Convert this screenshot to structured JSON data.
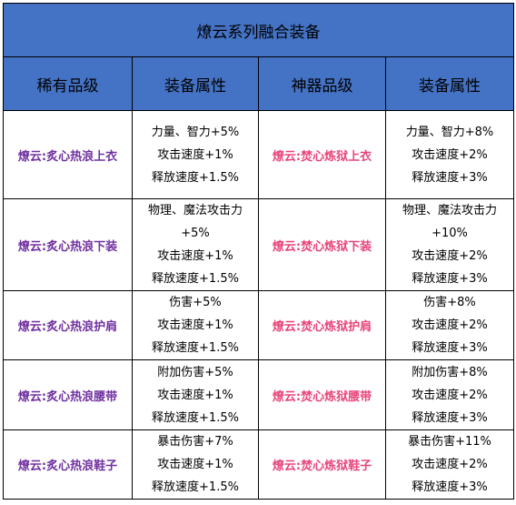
{
  "title": "燎云系列融合装备",
  "headers": [
    "稀有品级",
    "装备属性",
    "神器品级",
    "装备属性"
  ],
  "colors": {
    "header_bg": "#4472c4",
    "rare_name": "#7030a0",
    "artifact_name": "#e8457a"
  },
  "rows": [
    {
      "rare_name": "燎云:炙心热浪上衣",
      "rare_attrs": [
        "力量、智力+5%",
        "攻击速度+1%",
        "释放速度+1.5%"
      ],
      "artifact_name": "燎云:焚心炼狱上衣",
      "artifact_attrs": [
        "力量、智力+8%",
        "攻击速度+2%",
        "释放速度+3%"
      ]
    },
    {
      "rare_name": "燎云:炙心热浪下装",
      "rare_attrs": [
        "物理、魔法攻击力",
        "+5%",
        "攻击速度+1%",
        "释放速度+1.5%"
      ],
      "artifact_name": "燎云:焚心炼狱下装",
      "artifact_attrs": [
        "物理、魔法攻击力",
        "+10%",
        "攻击速度+2%",
        "释放速度+3%"
      ]
    },
    {
      "rare_name": "燎云:炙心热浪护肩",
      "rare_attrs": [
        "伤害+5%",
        "攻击速度+1%",
        "释放速度+1.5%"
      ],
      "artifact_name": "燎云:焚心炼狱护肩",
      "artifact_attrs": [
        "伤害+8%",
        "攻击速度+2%",
        "释放速度+3%"
      ]
    },
    {
      "rare_name": "燎云:炙心热浪腰带",
      "rare_attrs": [
        "附加伤害+5%",
        "攻击速度+1%",
        "释放速度+1.5%"
      ],
      "artifact_name": "燎云:焚心炼狱腰带",
      "artifact_attrs": [
        "附加伤害+8%",
        "攻击速度+2%",
        "释放速度+3%"
      ]
    },
    {
      "rare_name": "燎云:炙心热浪鞋子",
      "rare_attrs": [
        "暴击伤害+7%",
        "攻击速度+1%",
        "释放速度+1.5%"
      ],
      "artifact_name": "燎云:焚心炼狱鞋子",
      "artifact_attrs": [
        "暴击伤害+11%",
        "攻击速度+2%",
        "释放速度+3%"
      ]
    }
  ]
}
